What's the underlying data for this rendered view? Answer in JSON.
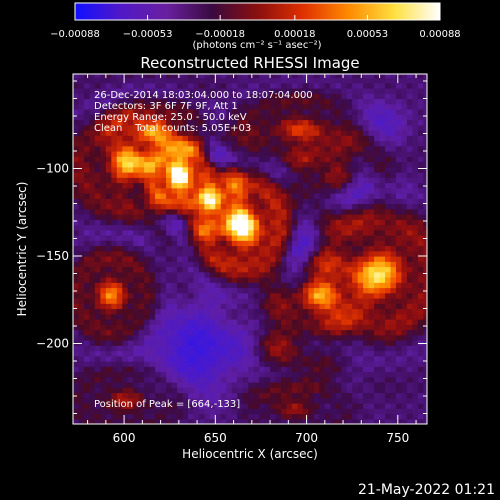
{
  "chart_data": {
    "type": "heatmap",
    "title": "Reconstructed RHESSI Image",
    "xlabel": "Heliocentric X (arcsec)",
    "ylabel": "Heliocentric Y (arcsec)",
    "xlim": [
      572,
      766
    ],
    "ylim": [
      -246,
      -46
    ],
    "x_ticks": [
      600,
      650,
      700,
      750
    ],
    "x_tick_labels": [
      "600",
      "650",
      "700",
      "750"
    ],
    "y_ticks": [
      -100,
      -150,
      -200
    ],
    "y_tick_labels": [
      "−100",
      "−150",
      "−200"
    ],
    "colorbar": {
      "range": [
        -0.00088,
        0.00088
      ],
      "ticks": [
        -0.00088,
        -0.00053,
        -0.00018,
        0.00018,
        0.00053,
        0.00088
      ],
      "tick_labels": [
        "−0.00088",
        "−0.00053",
        "−0.00018",
        "0.00018",
        "0.00053",
        "0.00088"
      ],
      "unit_label": "(photons cm⁻² s⁻¹ asec⁻²)",
      "colors": [
        "#1010ff",
        "#5018c8",
        "#6a1fa0",
        "#3a0a40",
        "#8a0f0f",
        "#e03000",
        "#ff8a00",
        "#ffe040",
        "#ffffff"
      ]
    },
    "annotation_lines": [
      "26-Dec-2014 18:03:04.000 to 18:07:04.000",
      "Detectors: 3F 6F 7F 9F, Att 1",
      "Energy Range: 25.0 - 50.0 keV",
      "Clean    Total counts: 5.05E+03"
    ],
    "peak_label": "Position of Peak = [664,-133]",
    "peak": {
      "x": 664,
      "y": -133
    },
    "sources": [
      {
        "x": 665,
        "y": -133,
        "sx": 13,
        "sy": 15,
        "amp": 1.0
      },
      {
        "x": 648,
        "y": -118,
        "sx": 9,
        "sy": 10,
        "amp": 0.55
      },
      {
        "x": 630,
        "y": -104,
        "sx": 9,
        "sy": 10,
        "amp": 0.85
      },
      {
        "x": 603,
        "y": -98,
        "sx": 17,
        "sy": 15,
        "amp": 0.62
      },
      {
        "x": 617,
        "y": -80,
        "sx": 14,
        "sy": 10,
        "amp": 0.48
      },
      {
        "x": 696,
        "y": -77,
        "sx": 18,
        "sy": 10,
        "amp": 0.42
      },
      {
        "x": 718,
        "y": -105,
        "sx": 14,
        "sy": 14,
        "amp": 0.38
      },
      {
        "x": 740,
        "y": -160,
        "sx": 18,
        "sy": 18,
        "amp": 0.75
      },
      {
        "x": 707,
        "y": -172,
        "sx": 14,
        "sy": 11,
        "amp": 0.42
      },
      {
        "x": 593,
        "y": -172,
        "sx": 12,
        "sy": 13,
        "amp": 0.55
      },
      {
        "x": 683,
        "y": -201,
        "sx": 18,
        "sy": 16,
        "amp": 0.32
      },
      {
        "x": 601,
        "y": -232,
        "sx": 16,
        "sy": 10,
        "amp": 0.3
      },
      {
        "x": 694,
        "y": -238,
        "sx": 16,
        "sy": 8,
        "amp": 0.25
      },
      {
        "x": 646,
        "y": -202,
        "sx": 20,
        "sy": 16,
        "amp": -0.55
      },
      {
        "x": 727,
        "y": -112,
        "sx": 12,
        "sy": 10,
        "amp": -0.32
      },
      {
        "x": 697,
        "y": -148,
        "sx": 9,
        "sy": 9,
        "amp": -0.22
      },
      {
        "x": 740,
        "y": -72,
        "sx": 12,
        "sy": 8,
        "amp": -0.25
      }
    ]
  },
  "footer": {
    "timestamp": "21-May-2022 01:21"
  }
}
